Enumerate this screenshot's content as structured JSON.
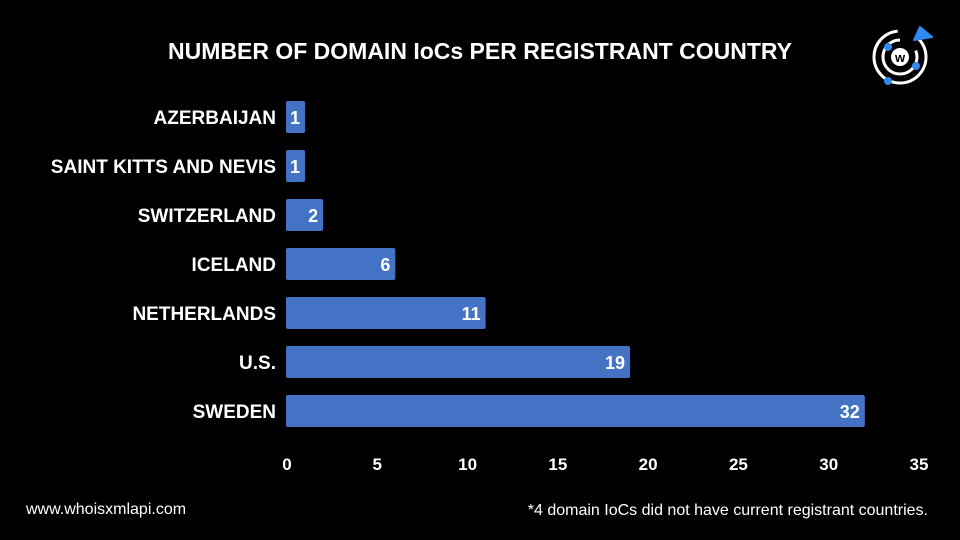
{
  "chart_data": {
    "type": "bar",
    "orientation": "horizontal",
    "title": "NUMBER OF DOMAIN IoCs PER REGISTRANT COUNTRY",
    "categories": [
      "AZERBAIJAN",
      "SAINT KITTS AND NEVIS",
      "SWITZERLAND",
      "ICELAND",
      "NETHERLANDS",
      "U.S.",
      "SWEDEN"
    ],
    "values": [
      1,
      1,
      2,
      6,
      11,
      19,
      32
    ],
    "xlim": [
      0,
      35
    ],
    "xticks": [
      0,
      5,
      10,
      15,
      20,
      25,
      30,
      35
    ],
    "xlabel": "",
    "ylabel": "",
    "grid": false,
    "bar_color": "#4472C4",
    "data_labels": true
  },
  "footer": {
    "website": "www.whoisxmlapi.com",
    "note": "*4 domain IoCs did not have current registrant countries."
  },
  "colors": {
    "background": "#000000",
    "logo_accent": "#2F8BF0"
  }
}
